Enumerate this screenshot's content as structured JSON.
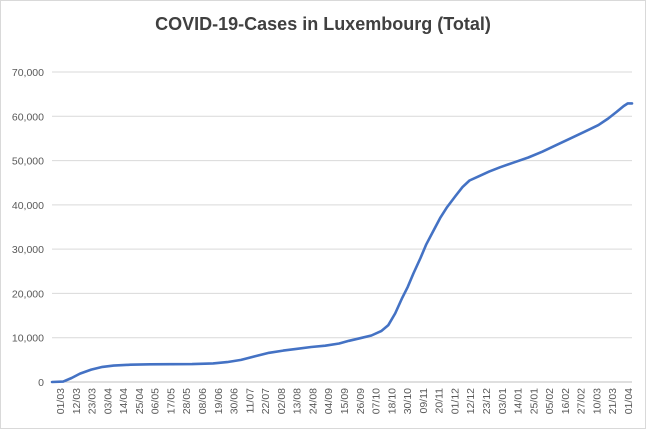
{
  "chart_data": {
    "type": "line",
    "title": "COVID-19-Cases in Luxembourg (Total)",
    "xlabel": "",
    "ylabel": "",
    "ylim": [
      0,
      70000
    ],
    "y_ticks": [
      "0",
      "10,000",
      "20,000",
      "30,000",
      "40,000",
      "50,000",
      "60,000",
      "70,000"
    ],
    "x_tick_labels": [
      "01/03",
      "12/03",
      "23/03",
      "03/04",
      "14/04",
      "25/04",
      "06/05",
      "17/05",
      "28/05",
      "08/06",
      "19/06",
      "30/06",
      "11/07",
      "22/07",
      "02/08",
      "13/08",
      "24/08",
      "04/09",
      "15/09",
      "26/09",
      "07/10",
      "18/10",
      "30/10",
      "09/11",
      "20/11",
      "01/12",
      "12/12",
      "23/12",
      "03/01",
      "14/01",
      "25/01",
      "05/02",
      "16/02",
      "27/02",
      "10/03",
      "21/03",
      "01/04"
    ],
    "grid": "horizontal",
    "legend": "none",
    "series": [
      {
        "color": "#4472c4",
        "points": [
          [
            0,
            0
          ],
          [
            8,
            100
          ],
          [
            14,
            900
          ],
          [
            20,
            1900
          ],
          [
            28,
            2800
          ],
          [
            36,
            3400
          ],
          [
            44,
            3700
          ],
          [
            56,
            3900
          ],
          [
            70,
            4000
          ],
          [
            100,
            4050
          ],
          [
            115,
            4200
          ],
          [
            125,
            4500
          ],
          [
            135,
            5000
          ],
          [
            145,
            5800
          ],
          [
            155,
            6600
          ],
          [
            165,
            7100
          ],
          [
            175,
            7500
          ],
          [
            185,
            7900
          ],
          [
            195,
            8200
          ],
          [
            205,
            8700
          ],
          [
            212,
            9300
          ],
          [
            220,
            9900
          ],
          [
            228,
            10500
          ],
          [
            235,
            11500
          ],
          [
            240,
            12800
          ],
          [
            245,
            15500
          ],
          [
            250,
            19000
          ],
          [
            254,
            21500
          ],
          [
            258,
            24500
          ],
          [
            263,
            28000
          ],
          [
            267,
            31000
          ],
          [
            272,
            34000
          ],
          [
            277,
            37000
          ],
          [
            282,
            39500
          ],
          [
            288,
            42000
          ],
          [
            293,
            44000
          ],
          [
            298,
            45500
          ],
          [
            305,
            46500
          ],
          [
            312,
            47500
          ],
          [
            320,
            48500
          ],
          [
            330,
            49600
          ],
          [
            340,
            50700
          ],
          [
            350,
            52000
          ],
          [
            360,
            53500
          ],
          [
            370,
            55000
          ],
          [
            380,
            56500
          ],
          [
            390,
            58000
          ],
          [
            397,
            59500
          ],
          [
            403,
            61000
          ],
          [
            408,
            62300
          ],
          [
            411,
            62900
          ],
          [
            414,
            62900
          ]
        ]
      }
    ]
  }
}
